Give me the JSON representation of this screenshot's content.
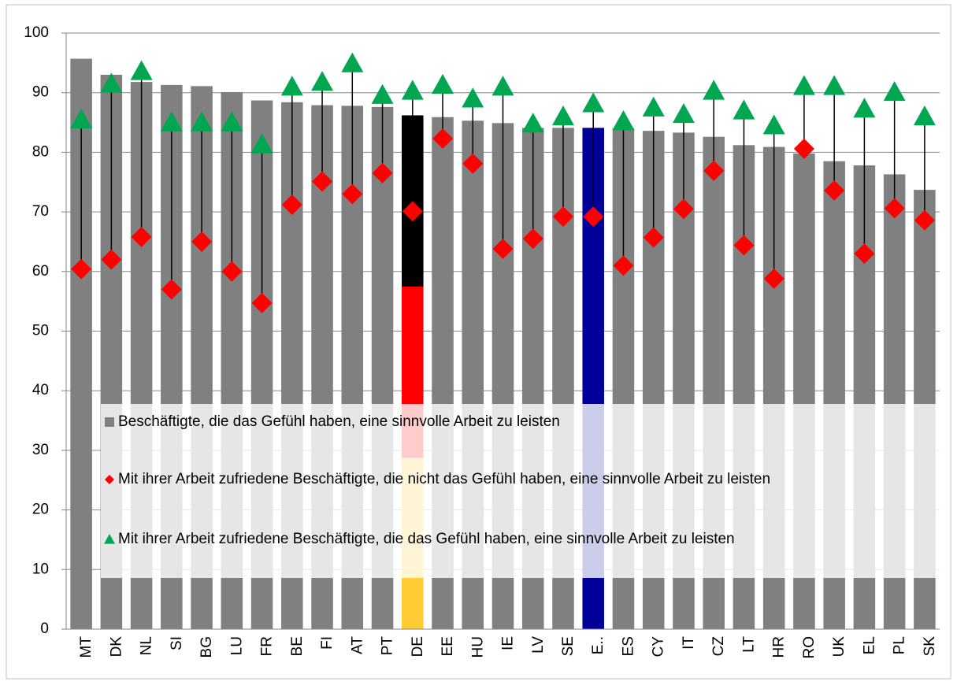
{
  "chart_data": {
    "type": "bar",
    "categories": [
      "MT",
      "DK",
      "NL",
      "SI",
      "BG",
      "LU",
      "FR",
      "BE",
      "FI",
      "AT",
      "PT",
      "DE",
      "EE",
      "HU",
      "IE",
      "LV",
      "SE",
      "E..",
      "ES",
      "CY",
      "IT",
      "CZ",
      "LT",
      "HR",
      "RO",
      "UK",
      "EL",
      "PL",
      "SK"
    ],
    "series": [
      {
        "name": "Beschäftigte, die das Gefühl haben, eine sinnvolle Arbeit zu leisten",
        "type": "bar",
        "color": "#808080",
        "bar_colors": [
          "#808080",
          "#808080",
          "#808080",
          "#808080",
          "#808080",
          "#808080",
          "#808080",
          "#808080",
          "#808080",
          "#808080",
          "#808080",
          [
            "#000000",
            "#ff0000",
            "#ffcc33"
          ],
          "#808080",
          "#808080",
          "#808080",
          "#808080",
          "#808080",
          "#000099",
          "#808080",
          "#808080",
          "#808080",
          "#808080",
          "#808080",
          "#808080",
          "#808080",
          "#808080",
          "#808080",
          "#808080",
          "#808080"
        ],
        "values": [
          95.7,
          93.0,
          91.8,
          91.3,
          91.1,
          90.1,
          88.7,
          88.4,
          87.9,
          87.8,
          87.6,
          86.2,
          85.9,
          85.3,
          84.9,
          84.1,
          84.1,
          84.1,
          84.0,
          83.6,
          83.3,
          82.6,
          81.2,
          80.9,
          79.8,
          78.5,
          77.8,
          76.3,
          73.7
        ]
      },
      {
        "name": "Mit ihrer Arbeit zufriedene Beschäftigte, die nicht das Gefühl haben, eine sinnvolle Arbeit zu leisten",
        "type": "marker",
        "marker": "diamond",
        "color": "#ff0000",
        "values": [
          60.4,
          62.0,
          65.8,
          57.0,
          65.0,
          60.0,
          54.7,
          71.2,
          75.1,
          73.0,
          76.5,
          70.1,
          82.3,
          78.1,
          63.8,
          65.5,
          69.2,
          69.2,
          61.0,
          65.7,
          70.5,
          76.9,
          64.4,
          58.8,
          80.6,
          73.6,
          63.0,
          70.6,
          68.6
        ]
      },
      {
        "name": "Mit ihrer Arbeit zufriedene Beschäftigte, die das Gefühl haben, eine sinnvolle Arbeit zu leisten",
        "type": "marker",
        "marker": "triangle",
        "color": "#00a650",
        "values": [
          85.5,
          91.5,
          93.6,
          85.0,
          85.0,
          85.0,
          81.3,
          91.0,
          91.8,
          94.9,
          89.6,
          90.3,
          91.3,
          89.0,
          91.0,
          84.8,
          86.0,
          88.2,
          85.2,
          87.5,
          86.4,
          90.3,
          87.0,
          84.5,
          91.1,
          91.1,
          87.3,
          90.1,
          86.0
        ]
      }
    ],
    "ylim": [
      0,
      100
    ],
    "yticks": [
      0,
      10,
      20,
      30,
      40,
      50,
      60,
      70,
      80,
      90,
      100
    ],
    "grid": true,
    "connector_color": "#000000"
  }
}
